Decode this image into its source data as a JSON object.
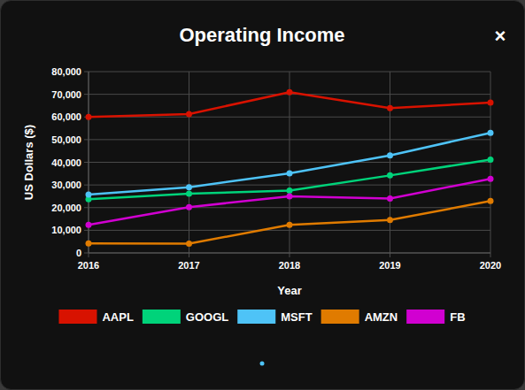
{
  "close_button": "×",
  "chart_data": {
    "type": "line",
    "title": "Operating Income",
    "x_label": "Year",
    "y_label": "US Dollars ($)",
    "categories": [
      "2016",
      "2017",
      "2018",
      "2019",
      "2020"
    ],
    "series": [
      {
        "name": "AAPL",
        "color": "#d81200",
        "values": [
          60000,
          61300,
          70900,
          63900,
          66300
        ]
      },
      {
        "name": "GOOGL",
        "color": "#00d37a",
        "values": [
          23700,
          26100,
          27500,
          34200,
          41200
        ]
      },
      {
        "name": "MSFT",
        "color": "#4ec3f7",
        "values": [
          25800,
          29000,
          35100,
          43000,
          53000
        ]
      },
      {
        "name": "AMZN",
        "color": "#e07b00",
        "values": [
          4200,
          4100,
          12400,
          14500,
          22900
        ]
      },
      {
        "name": "FB",
        "color": "#d100d1",
        "values": [
          12400,
          20200,
          25000,
          24000,
          32700
        ]
      }
    ],
    "ylim": [
      0,
      80000
    ],
    "yticks": [
      0,
      {
        "value": 10000,
        "label": "10,000"
      },
      {
        "value": 20000,
        "label": "20,000"
      },
      {
        "value": 30000,
        "label": "30,000"
      },
      {
        "value": 40000,
        "label": "40,000"
      },
      {
        "value": 50000,
        "label": "50,000"
      },
      {
        "value": 60000,
        "label": "60,000"
      },
      {
        "value": 70000,
        "label": "70,000"
      },
      {
        "value": 80000,
        "label": "80,000"
      }
    ],
    "grid": true,
    "legend": "bottom",
    "marker": "circle"
  }
}
